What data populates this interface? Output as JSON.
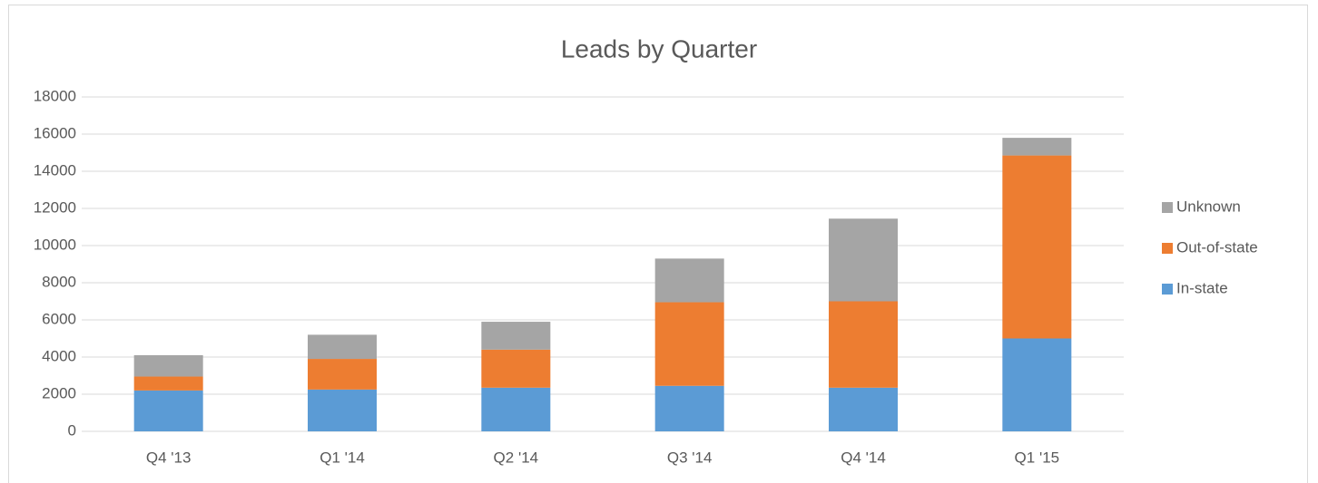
{
  "chart_data": {
    "type": "stacked_bar",
    "title": "Leads by Quarter",
    "categories": [
      "Q4 '13",
      "Q1 '14",
      "Q2 '14",
      "Q3 '14",
      "Q4 '14",
      "Q1 '15"
    ],
    "series": [
      {
        "name": "In-state",
        "color": "#5b9bd5",
        "values": [
          2200,
          2250,
          2350,
          2450,
          2350,
          5000
        ]
      },
      {
        "name": "Out-of-state",
        "color": "#ed7d31",
        "values": [
          750,
          1650,
          2050,
          4500,
          4650,
          9850
        ]
      },
      {
        "name": "Unknown",
        "color": "#a5a5a5",
        "values": [
          1150,
          1300,
          1500,
          2350,
          4450,
          950
        ]
      }
    ],
    "ylim": [
      0,
      18000
    ],
    "yticks": [
      0,
      2000,
      4000,
      6000,
      8000,
      10000,
      12000,
      14000,
      16000,
      18000
    ],
    "grid": true,
    "legend": "right"
  }
}
